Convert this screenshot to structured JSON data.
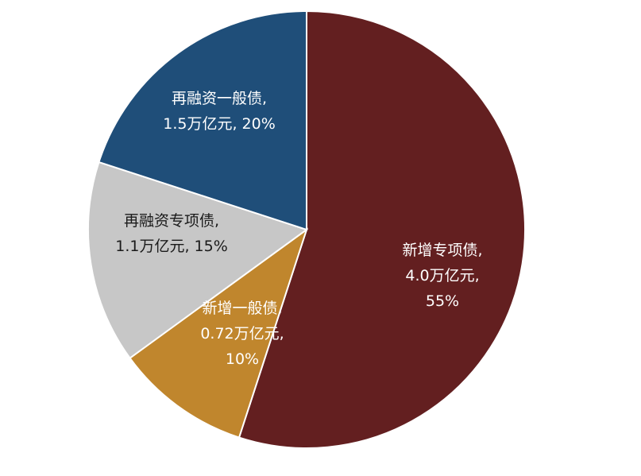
{
  "chart_data": {
    "type": "pie",
    "title": "",
    "start_angle_deg": 0,
    "direction": "clockwise",
    "slices": [
      {
        "name": "新增专项债",
        "value": 55,
        "label_lines": [
          "新增专项债,",
          "4.0万亿元,",
          "55%"
        ],
        "color": "#631f20",
        "text_color": "#ffffff"
      },
      {
        "name": "新增一般债",
        "value": 10,
        "label_lines": [
          "新增一般债,",
          "0.72万亿元,",
          "10%"
        ],
        "color": "#c0862d",
        "text_color": "#ffffff"
      },
      {
        "name": "再融资专项债",
        "value": 15,
        "label_lines": [
          "再融资专项债,",
          "1.1万亿元, 15%"
        ],
        "color": "#c7c7c7",
        "text_color": "#1a1a1a"
      },
      {
        "name": "再融资一般债",
        "value": 20,
        "label_lines": [
          "再融资一般债,",
          "1.5万亿元, 20%"
        ],
        "color": "#1f4e79",
        "text_color": "#ffffff"
      }
    ]
  }
}
